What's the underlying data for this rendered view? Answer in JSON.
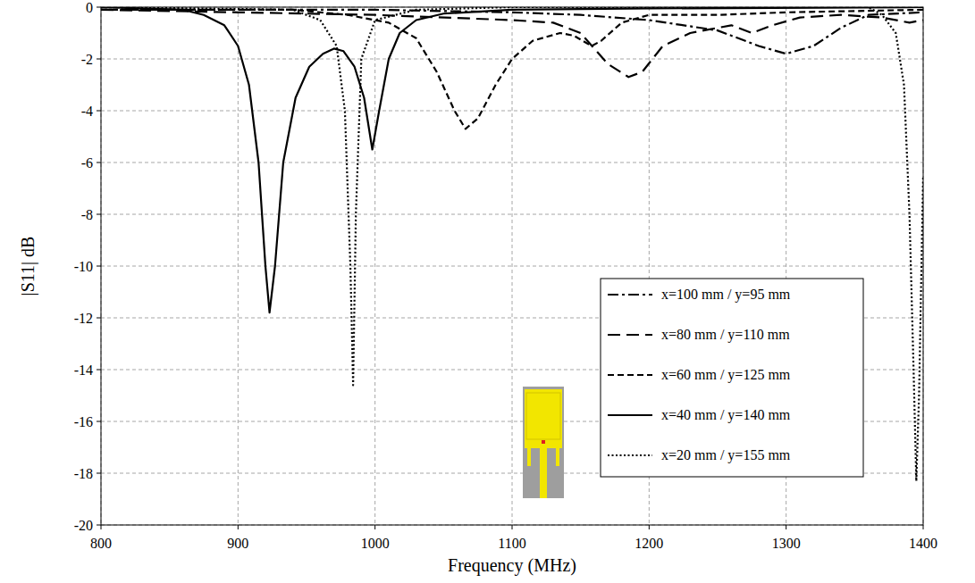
{
  "chart_data": {
    "type": "line",
    "xlabel": "Frequency (MHz)",
    "ylabel": "|S11| dB",
    "xlim": [
      800,
      1400
    ],
    "ylim": [
      -20,
      0
    ],
    "xticks": [
      800,
      900,
      1000,
      1100,
      1200,
      1300,
      1400
    ],
    "yticks": [
      -20,
      -18,
      -16,
      -14,
      -12,
      -10,
      -8,
      -6,
      -4,
      -2,
      0
    ],
    "grid": true,
    "legend": "lower-right",
    "series": [
      {
        "name": "x=100 mm / y=95 mm",
        "color": "#000000",
        "line_style": "dash-dot",
        "x": [
          800,
          900,
          1000,
          1100,
          1150,
          1200,
          1250,
          1280,
          1300,
          1320,
          1340,
          1360,
          1400
        ],
        "values": [
          -0.1,
          -0.1,
          -0.1,
          -0.2,
          -0.3,
          -0.5,
          -0.9,
          -1.5,
          -1.8,
          -1.5,
          -0.8,
          -0.3,
          -0.2
        ]
      },
      {
        "name": "x=80 mm / y=110 mm",
        "color": "#000000",
        "line_style": "long-dash",
        "x": [
          800,
          900,
          1000,
          1100,
          1130,
          1150,
          1160,
          1170,
          1185,
          1195,
          1210,
          1230,
          1250,
          1260,
          1275,
          1290,
          1310,
          1340,
          1370,
          1390,
          1400
        ],
        "values": [
          -0.1,
          -0.2,
          -0.3,
          -0.5,
          -0.6,
          -1.0,
          -1.6,
          -2.2,
          -2.7,
          -2.5,
          -1.5,
          -1.0,
          -0.8,
          -0.7,
          -1.0,
          -0.7,
          -0.4,
          -0.3,
          -0.4,
          -0.6,
          -0.5
        ]
      },
      {
        "name": "x=60 mm / y=125 mm",
        "color": "#000000",
        "line_style": "dash",
        "x": [
          800,
          940,
          980,
          1010,
          1030,
          1045,
          1058,
          1066,
          1075,
          1088,
          1100,
          1115,
          1135,
          1145,
          1158,
          1165,
          1180,
          1200,
          1250,
          1300,
          1400
        ],
        "values": [
          -0.1,
          -0.1,
          -0.3,
          -0.6,
          -1.2,
          -2.5,
          -4.0,
          -4.7,
          -4.3,
          -3.0,
          -2.0,
          -1.3,
          -1.0,
          -1.1,
          -1.5,
          -1.3,
          -0.6,
          -0.3,
          -0.3,
          -0.2,
          -0.1
        ]
      },
      {
        "name": "x=40 mm / y=140 mm",
        "color": "#000000",
        "line_style": "solid",
        "x": [
          800,
          860,
          875,
          890,
          900,
          908,
          915,
          920,
          923,
          927,
          933,
          942,
          952,
          962,
          970,
          977,
          985,
          992,
          998,
          1003,
          1010,
          1018,
          1030,
          1050,
          1100,
          1200,
          1400
        ],
        "values": [
          0,
          -0.1,
          -0.3,
          -0.7,
          -1.5,
          -3.0,
          -6.0,
          -10.0,
          -11.8,
          -10.0,
          -6.0,
          -3.5,
          -2.3,
          -1.8,
          -1.6,
          -1.7,
          -2.3,
          -3.5,
          -5.5,
          -4.0,
          -2.0,
          -1.0,
          -0.5,
          -0.25,
          -0.1,
          -0.05,
          0
        ]
      },
      {
        "name": "x=20 mm / y=155 mm",
        "color": "#000000",
        "line_style": "dot",
        "x": [
          800,
          940,
          960,
          972,
          978,
          982,
          984,
          986,
          990,
          1000,
          1030,
          1100,
          1360,
          1370,
          1380,
          1386,
          1390,
          1393,
          1395,
          1397,
          1400
        ],
        "values": [
          0,
          -0.1,
          -0.5,
          -1.5,
          -4.0,
          -10.0,
          -14.6,
          -8.0,
          -2.0,
          -0.5,
          -0.1,
          0,
          0,
          -0.3,
          -1.0,
          -3.0,
          -8.0,
          -14.0,
          -18.3,
          -15.0,
          -6.5
        ]
      }
    ]
  }
}
